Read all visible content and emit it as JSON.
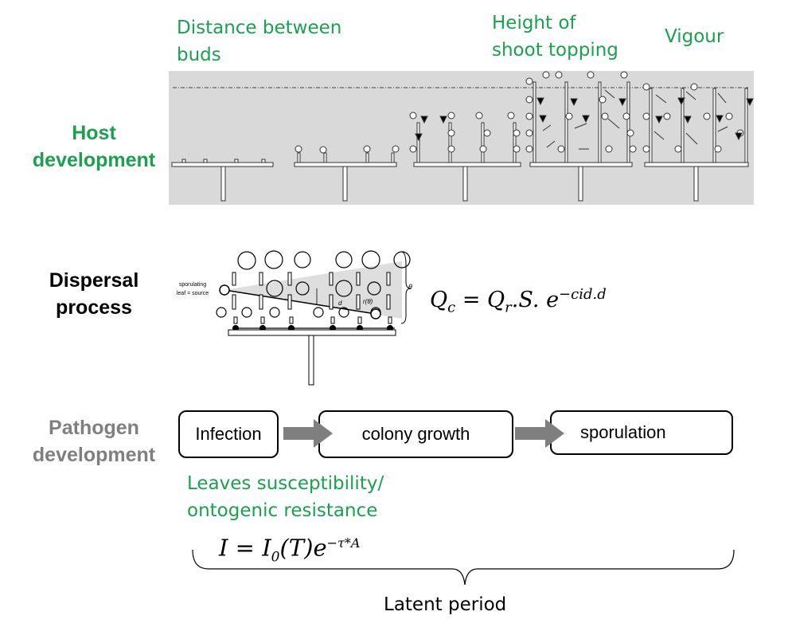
{
  "host": {
    "row_label_line1": "Host",
    "row_label_line2": "development",
    "label_distance_line1": "Distance between",
    "label_distance_line2": "buds",
    "label_height_line1": "Height of",
    "label_height_line2": "shoot topping",
    "label_vigour": "Vigour",
    "band_color": "#d9d9d9"
  },
  "dispersal": {
    "row_label_line1": "Dispersal",
    "row_label_line2": "process",
    "source_label_line1": "sporulating",
    "source_label_line2": "leaf = source",
    "distance_symbol": "d",
    "angle_symbol": "θ",
    "ratio_symbol": "r(θ)",
    "equation_lhs": "Q",
    "equation_lhs_sub": "c",
    "equation_mid": "= Q",
    "equation_mid_sub": "r",
    "equation_rest": ".S. e",
    "equation_exponent": "−cid.d"
  },
  "pathogen": {
    "row_label_line1": "Pathogen",
    "row_label_line2": "development",
    "stage_1": "Infection",
    "stage_2": "colony growth",
    "stage_3": "sporulation",
    "susceptibility_line1": "Leaves susceptibility/",
    "susceptibility_line2": "ontogenic resistance",
    "formula_main": "I = I",
    "formula_sub": "0",
    "formula_rest": "(T)e",
    "formula_exp": "−τ*A",
    "latent_label": "Latent period"
  },
  "colors": {
    "green": "#1aa150",
    "grey_label": "#7f7f7f",
    "arrow": "#7f7f7f"
  }
}
